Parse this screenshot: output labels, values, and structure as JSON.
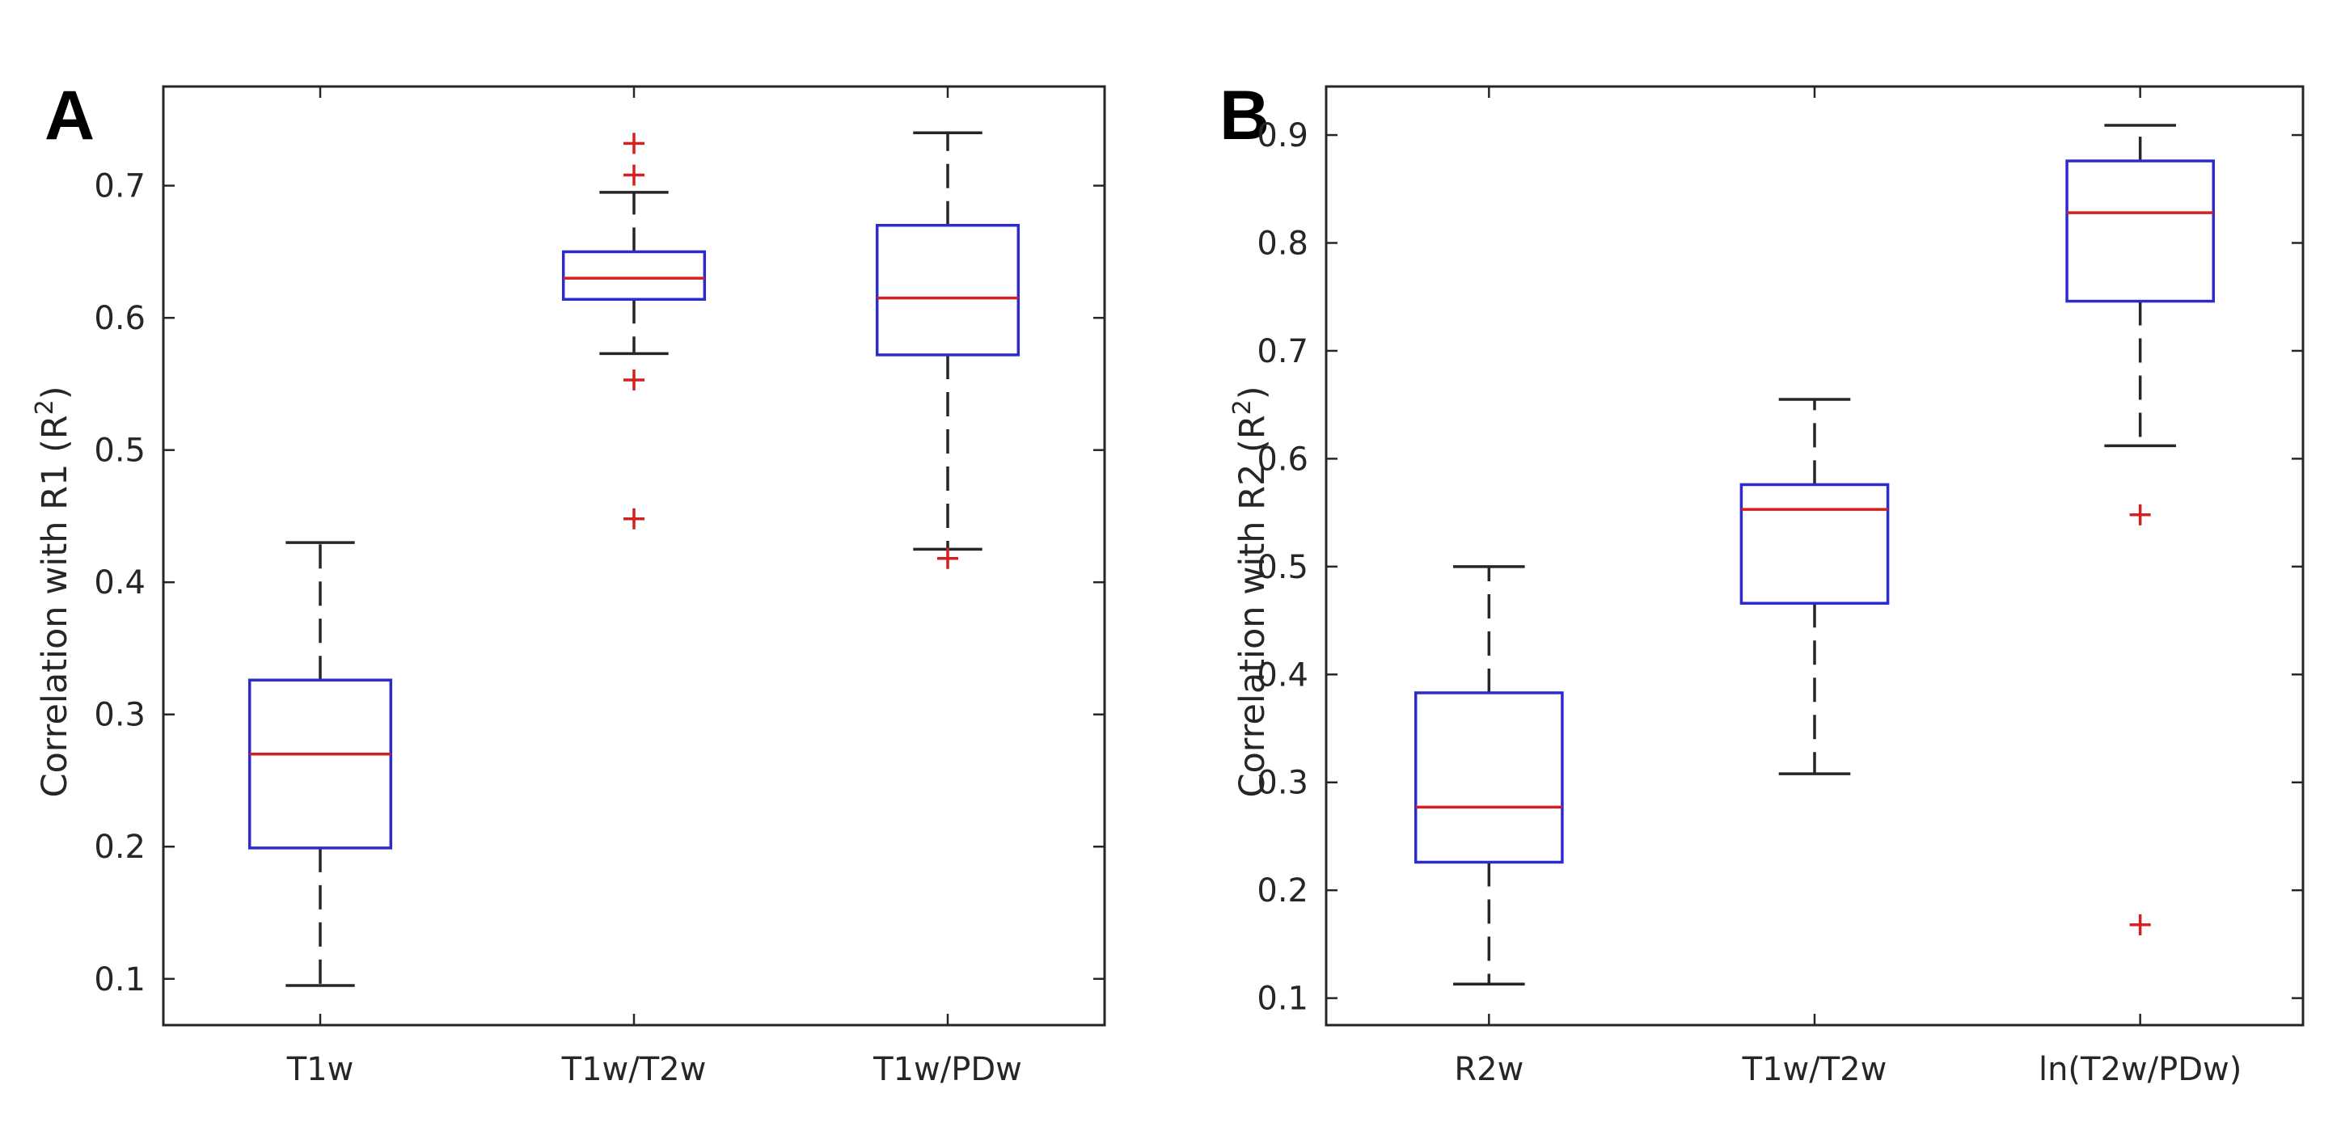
{
  "chart_data": [
    {
      "type": "box",
      "panel_label": "A",
      "ylabel": "Correlation with R1 (R",
      "ylabel_sup": "2",
      "ylabel_suffix": ")",
      "ylim": [
        0.065,
        0.775
      ],
      "yticks": [
        0.1,
        0.2,
        0.3,
        0.4,
        0.5,
        0.6,
        0.7
      ],
      "ytick_labels": [
        "0.1",
        "0.2",
        "0.3",
        "0.4",
        "0.5",
        "0.6",
        "0.7"
      ],
      "categories": [
        "T1w",
        "T1w/T2w",
        "T1w/PDw"
      ],
      "boxes": [
        {
          "whisker_low": 0.095,
          "q1": 0.199,
          "median": 0.27,
          "q3": 0.326,
          "whisker_high": 0.43,
          "outliers": []
        },
        {
          "whisker_low": 0.573,
          "q1": 0.614,
          "median": 0.63,
          "q3": 0.65,
          "whisker_high": 0.695,
          "outliers": [
            0.732,
            0.708,
            0.553,
            0.448
          ]
        },
        {
          "whisker_low": 0.425,
          "q1": 0.572,
          "median": 0.615,
          "q3": 0.67,
          "whisker_high": 0.74,
          "outliers": [
            0.418
          ]
        }
      ]
    },
    {
      "type": "box",
      "panel_label": "B",
      "ylabel": "Correlation with R2 (R",
      "ylabel_sup": "2",
      "ylabel_suffix": ")",
      "ylim": [
        0.075,
        0.945
      ],
      "yticks": [
        0.1,
        0.2,
        0.3,
        0.4,
        0.5,
        0.6,
        0.7,
        0.8,
        0.9
      ],
      "ytick_labels": [
        "0.1",
        "0.2",
        "0.3",
        "0.4",
        "0.5",
        "0.6",
        "0.7",
        "0.8",
        "0.9"
      ],
      "categories": [
        "R2w",
        "T1w/T2w",
        "ln(T2w/PDw)"
      ],
      "boxes": [
        {
          "whisker_low": 0.113,
          "q1": 0.226,
          "median": 0.277,
          "q3": 0.383,
          "whisker_high": 0.5,
          "outliers": []
        },
        {
          "whisker_low": 0.308,
          "q1": 0.466,
          "median": 0.553,
          "q3": 0.576,
          "whisker_high": 0.655,
          "outliers": []
        },
        {
          "whisker_low": 0.612,
          "q1": 0.746,
          "median": 0.828,
          "q3": 0.876,
          "whisker_high": 0.909,
          "outliers": [
            0.548,
            0.168
          ]
        }
      ]
    }
  ],
  "colors": {
    "box": "#2b2bd0",
    "median": "#d42020",
    "whisker": "#262626",
    "outlier": "#d42020",
    "axes": "#262626"
  }
}
